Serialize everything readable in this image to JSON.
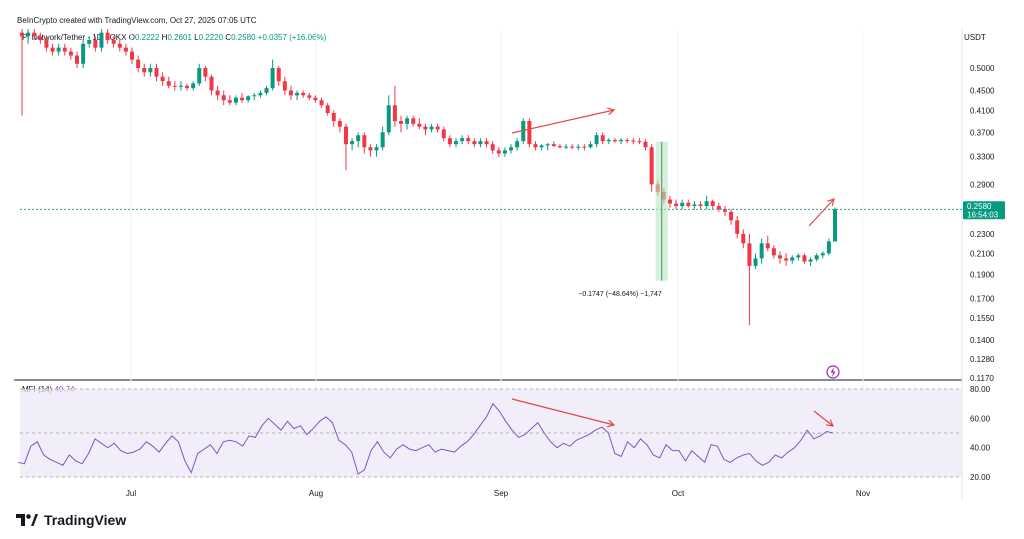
{
  "header": {
    "credit": "BeInCrypto created with TradingView.com, Oct 27, 2025 07:05 UTC",
    "symbol": "Pi Network/Tether · 1D · OKX",
    "o_label": "O",
    "o_value": "0.2222",
    "h_label": "H",
    "h_value": "0.2601",
    "l_label": "L",
    "l_value": "0.2220",
    "c_label": "C",
    "c_value": "0.2580",
    "change": "+0.0357 (+16.06%)",
    "currency": "USDT"
  },
  "price_tag": {
    "value": "0.2580",
    "countdown": "16:54:03"
  },
  "measure_label": "−0.1747 (−48.64%) −1,747",
  "mfi": {
    "label": "MFI (14)",
    "value": "49.74"
  },
  "brand": "TradingView",
  "colors": {
    "up": "#089981",
    "down": "#f23645",
    "accent": "#7e57c2",
    "annotation": "#e04848"
  },
  "chart_data": [
    {
      "type": "candlestick",
      "title": "Pi Network/Tether · 1D · OKX",
      "y_axis": {
        "scale": "log",
        "unit": "USDT",
        "ticks": [
          "0.5000",
          "0.4500",
          "0.4100",
          "0.3700",
          "0.3300",
          "0.2900",
          "0.2580",
          "0.2300",
          "0.2100",
          "0.1900",
          "0.1700",
          "0.1550",
          "0.1400",
          "0.1280",
          "0.1170"
        ]
      },
      "x_axis": {
        "ticks": [
          "Jul",
          "Aug",
          "Sep",
          "Oct",
          "Nov"
        ]
      },
      "series": [
        {
          "name": "Pi Network/Tether",
          "ohlc": [
            [
              0.59,
              0.6,
              0.4,
              0.58
            ],
            [
              0.58,
              0.6,
              0.56,
              0.59
            ],
            [
              0.59,
              0.6,
              0.57,
              0.58
            ],
            [
              0.58,
              0.59,
              0.56,
              0.57
            ],
            [
              0.57,
              0.58,
              0.54,
              0.55
            ],
            [
              0.55,
              0.56,
              0.53,
              0.54
            ],
            [
              0.54,
              0.56,
              0.53,
              0.55
            ],
            [
              0.55,
              0.56,
              0.53,
              0.54
            ],
            [
              0.54,
              0.55,
              0.52,
              0.53
            ],
            [
              0.53,
              0.54,
              0.5,
              0.51
            ],
            [
              0.51,
              0.57,
              0.5,
              0.56
            ],
            [
              0.56,
              0.58,
              0.55,
              0.57
            ],
            [
              0.57,
              0.58,
              0.54,
              0.55
            ],
            [
              0.55,
              0.6,
              0.54,
              0.59
            ],
            [
              0.59,
              0.6,
              0.56,
              0.57
            ],
            [
              0.57,
              0.58,
              0.55,
              0.56
            ],
            [
              0.56,
              0.57,
              0.54,
              0.55
            ],
            [
              0.55,
              0.56,
              0.53,
              0.54
            ],
            [
              0.54,
              0.55,
              0.51,
              0.52
            ],
            [
              0.52,
              0.53,
              0.49,
              0.5
            ],
            [
              0.5,
              0.51,
              0.48,
              0.49
            ],
            [
              0.49,
              0.51,
              0.48,
              0.5
            ],
            [
              0.5,
              0.51,
              0.47,
              0.48
            ],
            [
              0.48,
              0.49,
              0.46,
              0.47
            ],
            [
              0.47,
              0.48,
              0.455,
              0.46
            ],
            [
              0.46,
              0.47,
              0.45,
              0.458
            ],
            [
              0.458,
              0.47,
              0.45,
              0.46
            ],
            [
              0.46,
              0.465,
              0.45,
              0.455
            ],
            [
              0.455,
              0.47,
              0.45,
              0.465
            ],
            [
              0.465,
              0.51,
              0.46,
              0.5
            ],
            [
              0.5,
              0.505,
              0.47,
              0.48
            ],
            [
              0.48,
              0.485,
              0.44,
              0.45
            ],
            [
              0.45,
              0.46,
              0.43,
              0.44
            ],
            [
              0.44,
              0.45,
              0.42,
              0.43
            ],
            [
              0.43,
              0.44,
              0.42,
              0.425
            ],
            [
              0.425,
              0.44,
              0.42,
              0.435
            ],
            [
              0.435,
              0.445,
              0.425,
              0.43
            ],
            [
              0.43,
              0.44,
              0.425,
              0.438
            ],
            [
              0.438,
              0.445,
              0.43,
              0.44
            ],
            [
              0.44,
              0.45,
              0.435,
              0.445
            ],
            [
              0.445,
              0.46,
              0.44,
              0.455
            ],
            [
              0.455,
              0.52,
              0.45,
              0.5
            ],
            [
              0.5,
              0.505,
              0.46,
              0.47
            ],
            [
              0.47,
              0.48,
              0.44,
              0.45
            ],
            [
              0.45,
              0.46,
              0.43,
              0.44
            ],
            [
              0.44,
              0.45,
              0.43,
              0.445
            ],
            [
              0.445,
              0.45,
              0.435,
              0.44
            ],
            [
              0.44,
              0.445,
              0.43,
              0.435
            ],
            [
              0.435,
              0.44,
              0.425,
              0.43
            ],
            [
              0.43,
              0.435,
              0.415,
              0.42
            ],
            [
              0.42,
              0.425,
              0.4,
              0.405
            ],
            [
              0.405,
              0.41,
              0.38,
              0.39
            ],
            [
              0.39,
              0.395,
              0.37,
              0.38
            ],
            [
              0.38,
              0.385,
              0.31,
              0.35
            ],
            [
              0.35,
              0.36,
              0.34,
              0.355
            ],
            [
              0.355,
              0.37,
              0.345,
              0.365
            ],
            [
              0.365,
              0.37,
              0.335,
              0.345
            ],
            [
              0.345,
              0.35,
              0.33,
              0.34
            ],
            [
              0.34,
              0.35,
              0.33,
              0.345
            ],
            [
              0.345,
              0.38,
              0.34,
              0.37
            ],
            [
              0.37,
              0.44,
              0.365,
              0.42
            ],
            [
              0.42,
              0.46,
              0.38,
              0.39
            ],
            [
              0.39,
              0.4,
              0.37,
              0.385
            ],
            [
              0.385,
              0.4,
              0.375,
              0.395
            ],
            [
              0.395,
              0.4,
              0.38,
              0.385
            ],
            [
              0.385,
              0.395,
              0.375,
              0.38
            ],
            [
              0.38,
              0.385,
              0.365,
              0.375
            ],
            [
              0.375,
              0.385,
              0.37,
              0.38
            ],
            [
              0.38,
              0.385,
              0.37,
              0.375
            ],
            [
              0.375,
              0.38,
              0.355,
              0.36
            ],
            [
              0.36,
              0.365,
              0.345,
              0.35
            ],
            [
              0.35,
              0.36,
              0.345,
              0.355
            ],
            [
              0.355,
              0.365,
              0.35,
              0.36
            ],
            [
              0.36,
              0.365,
              0.35,
              0.355
            ],
            [
              0.355,
              0.36,
              0.345,
              0.35
            ],
            [
              0.35,
              0.36,
              0.345,
              0.355
            ],
            [
              0.355,
              0.36,
              0.345,
              0.35
            ],
            [
              0.35,
              0.355,
              0.335,
              0.34
            ],
            [
              0.34,
              0.345,
              0.33,
              0.335
            ],
            [
              0.335,
              0.345,
              0.33,
              0.34
            ],
            [
              0.34,
              0.35,
              0.335,
              0.345
            ],
            [
              0.345,
              0.36,
              0.34,
              0.355
            ],
            [
              0.355,
              0.395,
              0.35,
              0.39
            ],
            [
              0.39,
              0.395,
              0.345,
              0.35
            ],
            [
              0.35,
              0.355,
              0.34,
              0.345
            ],
            [
              0.345,
              0.35,
              0.34,
              0.348
            ],
            [
              0.348,
              0.352,
              0.34,
              0.35
            ],
            [
              0.35,
              0.355,
              0.345,
              0.347
            ],
            [
              0.347,
              0.35,
              0.343,
              0.345
            ],
            [
              0.345,
              0.35,
              0.342,
              0.346
            ],
            [
              0.346,
              0.35,
              0.342,
              0.345
            ],
            [
              0.345,
              0.35,
              0.34,
              0.346
            ],
            [
              0.346,
              0.35,
              0.34,
              0.345
            ],
            [
              0.345,
              0.355,
              0.343,
              0.35
            ],
            [
              0.35,
              0.37,
              0.345,
              0.365
            ],
            [
              0.365,
              0.37,
              0.35,
              0.355
            ],
            [
              0.355,
              0.36,
              0.35,
              0.357
            ],
            [
              0.357,
              0.36,
              0.352,
              0.355
            ],
            [
              0.355,
              0.36,
              0.35,
              0.357
            ],
            [
              0.357,
              0.36,
              0.352,
              0.356
            ],
            [
              0.356,
              0.36,
              0.35,
              0.355
            ],
            [
              0.355,
              0.36,
              0.35,
              0.354
            ],
            [
              0.354,
              0.358,
              0.34,
              0.345
            ],
            [
              0.345,
              0.35,
              0.28,
              0.29
            ],
            [
              0.29,
              0.295,
              0.275,
              0.28
            ],
            [
              0.28,
              0.285,
              0.265,
              0.27
            ],
            [
              0.27,
              0.275,
              0.26,
              0.265
            ],
            [
              0.265,
              0.27,
              0.258,
              0.262
            ],
            [
              0.262,
              0.27,
              0.258,
              0.266
            ],
            [
              0.266,
              0.27,
              0.26,
              0.262
            ],
            [
              0.262,
              0.268,
              0.258,
              0.264
            ],
            [
              0.264,
              0.268,
              0.258,
              0.262
            ],
            [
              0.262,
              0.275,
              0.258,
              0.268
            ],
            [
              0.268,
              0.27,
              0.258,
              0.262
            ],
            [
              0.262,
              0.266,
              0.255,
              0.258
            ],
            [
              0.258,
              0.262,
              0.25,
              0.255
            ],
            [
              0.255,
              0.258,
              0.24,
              0.245
            ],
            [
              0.245,
              0.25,
              0.225,
              0.23
            ],
            [
              0.23,
              0.235,
              0.215,
              0.22
            ],
            [
              0.22,
              0.23,
              0.15,
              0.198
            ],
            [
              0.198,
              0.21,
              0.195,
              0.205
            ],
            [
              0.205,
              0.225,
              0.2,
              0.22
            ],
            [
              0.22,
              0.228,
              0.212,
              0.215
            ],
            [
              0.215,
              0.218,
              0.205,
              0.208
            ],
            [
              0.208,
              0.212,
              0.2,
              0.205
            ],
            [
              0.205,
              0.21,
              0.198,
              0.203
            ],
            [
              0.203,
              0.208,
              0.2,
              0.206
            ],
            [
              0.206,
              0.21,
              0.203,
              0.208
            ],
            [
              0.208,
              0.21,
              0.2,
              0.202
            ],
            [
              0.202,
              0.206,
              0.198,
              0.204
            ],
            [
              0.204,
              0.21,
              0.202,
              0.208
            ],
            [
              0.208,
              0.212,
              0.205,
              0.21
            ],
            [
              0.21,
              0.225,
              0.208,
              0.222
            ],
            [
              0.222,
              0.2601,
              0.222,
              0.258
            ]
          ]
        }
      ]
    },
    {
      "type": "line",
      "title": "MFI (14)",
      "ylim": [
        20,
        80
      ],
      "y_ticks": [
        "80.00",
        "60.00",
        "40.00",
        "20.00"
      ],
      "series": [
        {
          "name": "MFI (14)",
          "values": [
            30,
            29,
            41,
            44,
            35,
            32,
            30,
            28,
            35,
            31,
            29,
            36,
            46,
            43,
            40,
            43,
            38,
            36,
            37,
            39,
            44,
            41,
            37,
            43,
            48,
            44,
            31,
            23,
            36,
            39,
            42,
            36,
            44,
            45,
            44,
            41,
            48,
            47,
            55,
            60,
            56,
            52,
            58,
            53,
            55,
            49,
            53,
            58,
            61,
            57,
            45,
            42,
            37,
            22,
            25,
            38,
            44,
            37,
            33,
            39,
            42,
            39,
            38,
            40,
            42,
            37,
            39,
            38,
            37,
            41,
            44,
            49,
            55,
            61,
            70,
            65,
            58,
            52,
            47,
            49,
            53,
            57,
            50,
            44,
            40,
            43,
            41,
            45,
            47,
            49,
            52,
            54,
            50,
            36,
            34,
            44,
            40,
            46,
            42,
            35,
            33,
            42,
            38,
            38,
            31,
            38,
            34,
            30,
            42,
            41,
            32,
            30,
            33,
            35,
            36,
            31,
            28,
            30,
            35,
            33,
            37,
            40,
            45,
            52,
            46,
            48,
            51,
            50
          ]
        }
      ]
    }
  ]
}
